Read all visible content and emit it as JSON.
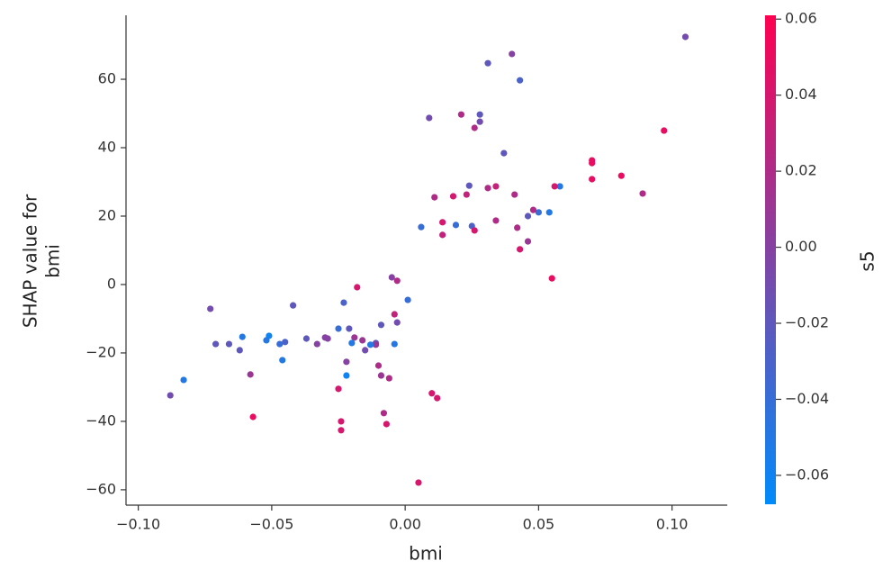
{
  "chart_data": {
    "type": "scatter",
    "xlabel": "bmi",
    "ylabel": [
      "SHAP value for",
      "bmi"
    ],
    "colorbar_label": "s5",
    "colormap": [
      "#008bfb",
      "#ff0051"
    ],
    "xlim": [
      -0.1046,
      0.1207
    ],
    "ylim": [
      -64.5,
      78.7
    ],
    "clim": [
      -0.0676,
      0.061
    ],
    "xticks": [
      {
        "value": -0.1,
        "label": "−0.10"
      },
      {
        "value": -0.05,
        "label": "−0.05"
      },
      {
        "value": 0,
        "label": "0.00"
      },
      0.05,
      {
        "value": 0.1,
        "label": "0.10"
      }
    ],
    "yticks": [
      {
        "value": -60,
        "label": "−60"
      },
      {
        "value": -40,
        "label": "−40"
      },
      {
        "value": -20,
        "label": "−20"
      },
      0,
      20,
      40,
      60
    ],
    "cticks": [
      {
        "value": -0.06,
        "label": "−0.06"
      },
      {
        "value": -0.04,
        "label": "−0.04"
      },
      {
        "value": -0.02,
        "label": "−0.02"
      },
      {
        "value": 0,
        "label": "0.00"
      },
      0.02,
      0.04,
      0.06
    ],
    "x": [
      0.105,
      0.097,
      0.04,
      0.031,
      0.043,
      0.009,
      0.021,
      0.028,
      0.028,
      0.026,
      0.037,
      0.07,
      0.07,
      0.081,
      0.07,
      0.089,
      0.058,
      0.056,
      0.034,
      0.031,
      0.024,
      0.041,
      0.023,
      0.018,
      0.011,
      0.054,
      0.05,
      0.048,
      0.046,
      0.034,
      0.014,
      0.019,
      0.025,
      0.006,
      0.042,
      0.026,
      0.014,
      0.046,
      0.043,
      0.055,
      -0.005,
      -0.003,
      -0.018,
      0.001,
      -0.023,
      -0.042,
      -0.073,
      -0.004,
      -0.003,
      -0.009,
      -0.021,
      -0.025,
      -0.061,
      -0.051,
      -0.03,
      -0.029,
      -0.037,
      -0.019,
      -0.052,
      -0.016,
      -0.045,
      -0.047,
      -0.066,
      -0.071,
      -0.033,
      -0.02,
      -0.011,
      -0.011,
      -0.013,
      -0.004,
      -0.062,
      -0.015,
      -0.046,
      -0.022,
      -0.01,
      -0.058,
      -0.022,
      -0.009,
      -0.006,
      -0.083,
      -0.025,
      0.01,
      0.012,
      -0.088,
      -0.008,
      -0.057,
      -0.024,
      -0.007,
      -0.024,
      0.005
    ],
    "y": [
      72.4,
      45,
      67.4,
      64.7,
      59.7,
      48.7,
      49.7,
      49.7,
      47.6,
      45.8,
      38.4,
      36.3,
      35.5,
      31.8,
      30.8,
      26.6,
      28.7,
      28.7,
      28.7,
      28.2,
      28.9,
      26.3,
      26.3,
      25.8,
      25.5,
      21.1,
      21.1,
      21.8,
      20.0,
      18.7,
      18.2,
      17.4,
      17.1,
      16.8,
      16.6,
      15.8,
      14.5,
      12.6,
      10.3,
      1.8,
      2.1,
      1.1,
      -0.8,
      -4.5,
      -5.3,
      -6.1,
      -7.1,
      -8.7,
      -11.1,
      -11.8,
      -12.9,
      -12.9,
      -15.3,
      -15.0,
      -15.5,
      -15.8,
      -15.8,
      -15.5,
      -16.3,
      -16.3,
      -16.8,
      -17.4,
      -17.4,
      -17.4,
      -17.4,
      -17.1,
      -17.1,
      -17.6,
      -17.6,
      -17.4,
      -19.2,
      -19.2,
      -22.1,
      -22.6,
      -23.7,
      -26.3,
      -26.6,
      -26.6,
      -27.4,
      -27.9,
      -30.5,
      -31.8,
      -33.2,
      -32.4,
      -37.6,
      -38.7,
      -40.0,
      -40.8,
      -42.6,
      -57.9
    ],
    "c": [
      -0.01,
      0.05,
      0.0,
      -0.02,
      -0.03,
      -0.01,
      0.02,
      -0.02,
      -0.01,
      0.02,
      -0.02,
      0.05,
      0.05,
      0.05,
      0.05,
      0.02,
      -0.05,
      0.04,
      0.03,
      0.02,
      -0.02,
      0.02,
      0.03,
      0.04,
      0.02,
      -0.05,
      -0.04,
      0.02,
      -0.02,
      0.02,
      0.04,
      -0.04,
      -0.03,
      -0.04,
      0.02,
      0.04,
      0.03,
      0.01,
      0.04,
      0.05,
      0.0,
      0.02,
      0.04,
      -0.04,
      -0.03,
      -0.02,
      -0.01,
      0.03,
      -0.01,
      -0.02,
      -0.02,
      -0.04,
      -0.05,
      -0.06,
      0.0,
      0.0,
      -0.02,
      0.01,
      -0.05,
      0.01,
      -0.03,
      -0.04,
      -0.02,
      -0.02,
      0.0,
      -0.05,
      -0.02,
      0.01,
      -0.05,
      -0.05,
      -0.02,
      -0.01,
      -0.05,
      0.0,
      0.02,
      0.01,
      -0.06,
      0.01,
      0.02,
      -0.05,
      0.04,
      0.04,
      0.04,
      -0.01,
      0.02,
      0.05,
      0.04,
      0.04,
      0.04,
      0.04
    ]
  }
}
